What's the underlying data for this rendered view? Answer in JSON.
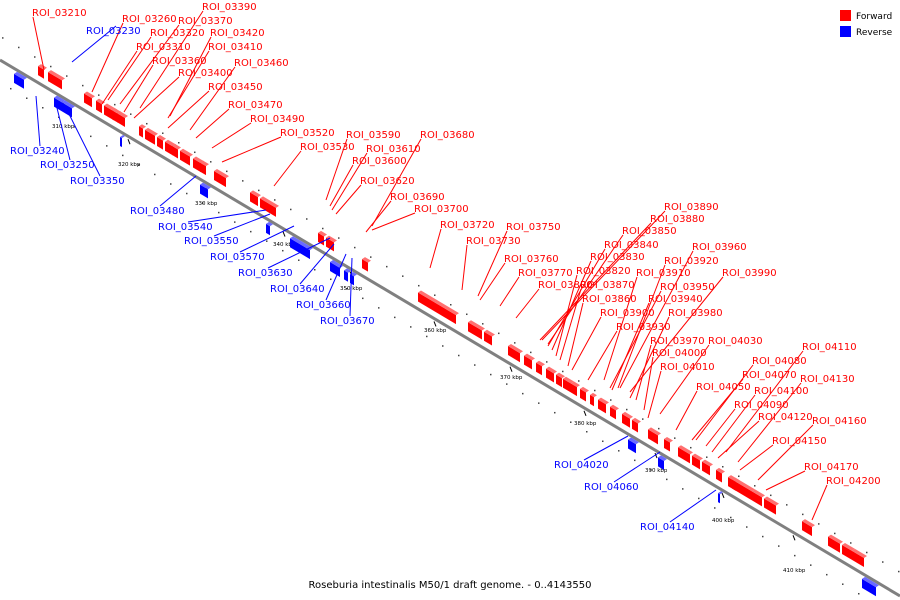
{
  "caption": "Roseburia intestinalis M50/1 draft genome. - 0..4143550",
  "legend": [
    {
      "label": "Forward",
      "color": "#ff0000"
    },
    {
      "label": "Reverse",
      "color": "#0000ff"
    }
  ],
  "colors": {
    "forward": "#ff0000",
    "reverse": "#0000ff",
    "backbone": "#7f7f7f"
  },
  "ticks": [
    "310 kbp",
    "320 kbp",
    "330 kbp",
    "340 kbp",
    "350 kbp",
    "360 kbp",
    "370 kbp",
    "380 kbp",
    "390 kbp",
    "400 kbp",
    "410 kbp"
  ],
  "forward_labels": [
    "ROI_03210",
    "ROI_03260",
    "ROI_03390",
    "ROI_03370",
    "ROI_03320",
    "ROI_03420",
    "ROI_03310",
    "ROI_03410",
    "ROI_03360",
    "ROI_03460",
    "ROI_03400",
    "ROI_03450",
    "ROI_03470",
    "ROI_03490",
    "ROI_03520",
    "ROI_03590",
    "ROI_03680",
    "ROI_03530",
    "ROI_03610",
    "ROI_03600",
    "ROI_03620",
    "ROI_03690",
    "ROI_03700",
    "ROI_03720",
    "ROI_03750",
    "ROI_03730",
    "ROI_03760",
    "ROI_03770",
    "ROI_03800",
    "ROI_03890",
    "ROI_03880",
    "ROI_03850",
    "ROI_03840",
    "ROI_03960",
    "ROI_03830",
    "ROI_03920",
    "ROI_03820",
    "ROI_03910",
    "ROI_03990",
    "ROI_03870",
    "ROI_03950",
    "ROI_03860",
    "ROI_03940",
    "ROI_03900",
    "ROI_03980",
    "ROI_03930",
    "ROI_03970",
    "ROI_04030",
    "ROI_04000",
    "ROI_04110",
    "ROI_04010",
    "ROI_04080",
    "ROI_04070",
    "ROI_04050",
    "ROI_04130",
    "ROI_04100",
    "ROI_04090",
    "ROI_04120",
    "ROI_04160",
    "ROI_04150",
    "ROI_04170",
    "ROI_04200"
  ],
  "reverse_labels": [
    "ROI_03230",
    "ROI_03240",
    "ROI_03250",
    "ROI_03350",
    "ROI_03480",
    "ROI_03540",
    "ROI_03550",
    "ROI_03570",
    "ROI_03630",
    "ROI_03640",
    "ROI_03660",
    "ROI_03670",
    "ROI_04020",
    "ROI_04060",
    "ROI_04140"
  ]
}
